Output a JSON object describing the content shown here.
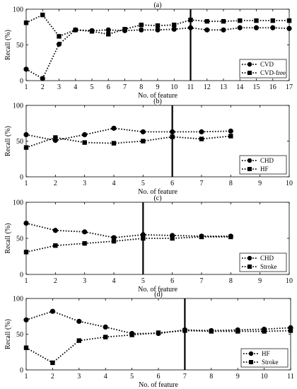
{
  "chart_data": [
    {
      "type": "line",
      "title": "(a)",
      "xlabel": "No. of feature",
      "ylabel": "Recall (%)",
      "xlim": [
        1,
        17
      ],
      "ylim": [
        0,
        100
      ],
      "xticks": [
        1,
        2,
        3,
        4,
        5,
        6,
        7,
        8,
        9,
        10,
        11,
        12,
        13,
        14,
        15,
        16,
        17
      ],
      "yticks": [
        0,
        50,
        100
      ],
      "vline": 11,
      "legend": "bottom-right",
      "x": [
        1,
        2,
        3,
        4,
        5,
        6,
        7,
        8,
        9,
        10,
        11,
        12,
        13,
        14,
        15,
        16,
        17
      ],
      "series": [
        {
          "name": "CVD",
          "marker": "circle",
          "values": [
            16,
            3,
            51,
            71,
            70,
            71,
            70,
            71,
            71,
            72,
            74,
            71,
            71,
            74,
            74,
            74,
            73
          ]
        },
        {
          "name": "CVD-free",
          "marker": "square",
          "values": [
            81,
            92,
            62,
            71,
            69,
            65,
            72,
            78,
            77,
            78,
            85,
            83,
            83,
            84,
            84,
            84,
            84
          ]
        }
      ]
    },
    {
      "type": "line",
      "title": "(b)",
      "xlabel": "No. of feature",
      "ylabel": "Recall (%)",
      "xlim": [
        1,
        10
      ],
      "ylim": [
        0,
        100
      ],
      "xticks": [
        1,
        2,
        3,
        4,
        5,
        6,
        7,
        8,
        9,
        10
      ],
      "yticks": [
        0,
        50,
        100
      ],
      "vline": 6,
      "legend": "bottom-right",
      "x": [
        1,
        2,
        3,
        4,
        5,
        6,
        7,
        8
      ],
      "series": [
        {
          "name": "CHD",
          "marker": "circle",
          "values": [
            59,
            51,
            59,
            68,
            63,
            63,
            63,
            64
          ]
        },
        {
          "name": "HF",
          "marker": "square",
          "values": [
            41,
            55,
            48,
            47,
            50,
            56,
            53,
            57
          ]
        }
      ]
    },
    {
      "type": "line",
      "title": "(c)",
      "xlabel": "No. of feature",
      "ylabel": "Recall (%)",
      "xlim": [
        1,
        10
      ],
      "ylim": [
        0,
        100
      ],
      "xticks": [
        1,
        2,
        3,
        4,
        5,
        6,
        7,
        8,
        9,
        10
      ],
      "yticks": [
        0,
        50,
        100
      ],
      "vline": 5,
      "legend": "bottom-right",
      "x": [
        1,
        2,
        3,
        4,
        5,
        6,
        7,
        8
      ],
      "series": [
        {
          "name": "CHD",
          "marker": "circle",
          "values": [
            71,
            61,
            59,
            51,
            55,
            54,
            53,
            53
          ]
        },
        {
          "name": "Stroke",
          "marker": "square",
          "values": [
            31,
            40,
            43,
            46,
            50,
            50,
            52,
            52
          ]
        }
      ]
    },
    {
      "type": "line",
      "title": "(d)",
      "xlabel": "No. of feature",
      "ylabel": "Recall (%)",
      "xlim": [
        1,
        11
      ],
      "ylim": [
        0,
        100
      ],
      "xticks": [
        1,
        2,
        3,
        4,
        5,
        6,
        7,
        8,
        9,
        10,
        11
      ],
      "yticks": [
        0,
        50,
        100
      ],
      "vline": 7,
      "legend": "bottom-right",
      "x": [
        1,
        2,
        3,
        4,
        5,
        6,
        7,
        8,
        9,
        10,
        11
      ],
      "series": [
        {
          "name": "HF",
          "marker": "circle",
          "values": [
            70,
            82,
            68,
            60,
            51,
            51,
            56,
            55,
            56,
            57,
            59
          ]
        },
        {
          "name": "Stroke",
          "marker": "square",
          "values": [
            31,
            10,
            41,
            46,
            49,
            52,
            55,
            54,
            54,
            54,
            55
          ]
        }
      ]
    }
  ]
}
